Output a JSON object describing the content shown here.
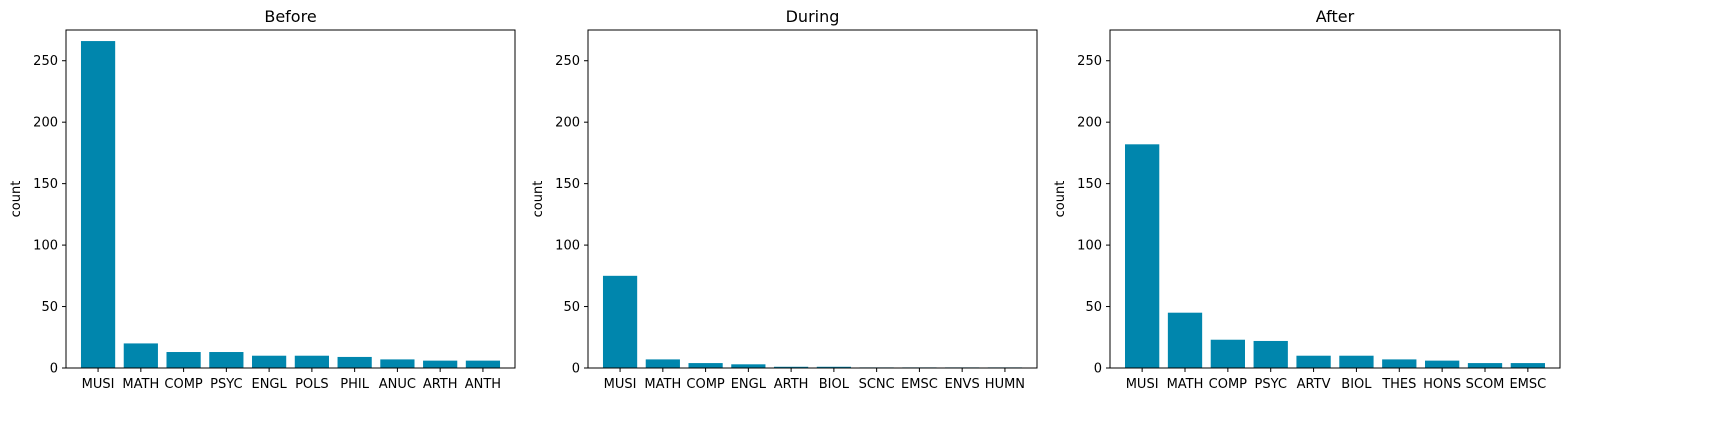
{
  "chart_data": [
    {
      "type": "bar",
      "title": "Before",
      "ylabel": "count",
      "xlabel": "",
      "ylim": [
        0,
        275
      ],
      "yticks": [
        0,
        50,
        100,
        150,
        200,
        250
      ],
      "categories": [
        "MUSI",
        "MATH",
        "COMP",
        "PSYC",
        "ENGL",
        "POLS",
        "PHIL",
        "ANUC",
        "ARTH",
        "ANTH"
      ],
      "values": [
        266,
        20,
        13,
        13,
        10,
        10,
        9,
        7,
        6,
        6
      ],
      "color": "#0086ad"
    },
    {
      "type": "bar",
      "title": "During",
      "ylabel": "count",
      "xlabel": "",
      "ylim": [
        0,
        275
      ],
      "yticks": [
        0,
        50,
        100,
        150,
        200,
        250
      ],
      "categories": [
        "MUSI",
        "MATH",
        "COMP",
        "ENGL",
        "ARTH",
        "BIOL",
        "SCNC",
        "EMSC",
        "ENVS",
        "HUMN"
      ],
      "values": [
        75,
        7,
        4,
        3,
        1,
        1,
        0.5,
        0.5,
        0.5,
        0.5
      ],
      "color": "#0086ad"
    },
    {
      "type": "bar",
      "title": "After",
      "ylabel": "count",
      "xlabel": "",
      "ylim": [
        0,
        275
      ],
      "yticks": [
        0,
        50,
        100,
        150,
        200,
        250
      ],
      "categories": [
        "MUSI",
        "MATH",
        "COMP",
        "PSYC",
        "ARTV",
        "BIOL",
        "THES",
        "HONS",
        "SCOM",
        "EMSC"
      ],
      "values": [
        182,
        45,
        23,
        22,
        10,
        10,
        7,
        6,
        4,
        4
      ],
      "color": "#0086ad"
    }
  ]
}
